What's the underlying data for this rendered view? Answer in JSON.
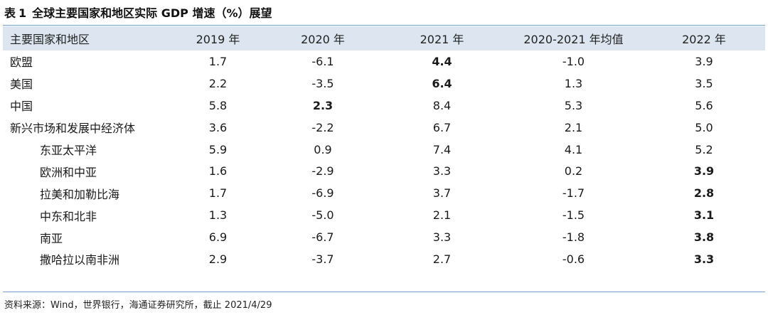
{
  "title": {
    "prefix": "表",
    "number": "1",
    "text": "全球主要国家和地区实际 GDP 增速（%）展望"
  },
  "table": {
    "headers": [
      "主要国家和地区",
      "2019 年",
      "2020 年",
      "2021 年",
      "2020-2021 年均值",
      "2022 年"
    ],
    "rows": [
      {
        "region": "欧盟",
        "indent": false,
        "values": [
          "1.7",
          "-6.1",
          "4.4",
          "-1.0",
          "3.9"
        ],
        "bold": [
          false,
          false,
          true,
          false,
          false
        ]
      },
      {
        "region": "美国",
        "indent": false,
        "values": [
          "2.2",
          "-3.5",
          "6.4",
          "1.3",
          "3.5"
        ],
        "bold": [
          false,
          false,
          true,
          false,
          false
        ]
      },
      {
        "region": "中国",
        "indent": false,
        "values": [
          "5.8",
          "2.3",
          "8.4",
          "5.3",
          "5.6"
        ],
        "bold": [
          false,
          true,
          false,
          false,
          false
        ]
      },
      {
        "region": "新兴市场和发展中经济体",
        "indent": false,
        "values": [
          "3.6",
          "-2.2",
          "6.7",
          "2.1",
          "5.0"
        ],
        "bold": [
          false,
          false,
          false,
          false,
          false
        ]
      },
      {
        "region": "东亚太平洋",
        "indent": true,
        "values": [
          "5.9",
          "0.9",
          "7.4",
          "4.1",
          "5.2"
        ],
        "bold": [
          false,
          false,
          false,
          false,
          false
        ]
      },
      {
        "region": "欧洲和中亚",
        "indent": true,
        "values": [
          "1.6",
          "-2.9",
          "3.3",
          "0.2",
          "3.9"
        ],
        "bold": [
          false,
          false,
          false,
          false,
          true
        ]
      },
      {
        "region": "拉美和加勒比海",
        "indent": true,
        "values": [
          "1.7",
          "-6.9",
          "3.7",
          "-1.7",
          "2.8"
        ],
        "bold": [
          false,
          false,
          false,
          false,
          true
        ]
      },
      {
        "region": "中东和北非",
        "indent": true,
        "values": [
          "1.3",
          "-5.0",
          "2.1",
          "-1.5",
          "3.1"
        ],
        "bold": [
          false,
          false,
          false,
          false,
          true
        ]
      },
      {
        "region": "南亚",
        "indent": true,
        "values": [
          "6.9",
          "-6.7",
          "3.3",
          "-1.8",
          "3.8"
        ],
        "bold": [
          false,
          false,
          false,
          false,
          true
        ]
      },
      {
        "region": "撒哈拉以南非洲",
        "indent": true,
        "values": [
          "2.9",
          "-3.7",
          "2.7",
          "-0.6",
          "3.3"
        ],
        "bold": [
          false,
          false,
          false,
          false,
          true
        ]
      }
    ]
  },
  "source": "资料来源：Wind，世界银行，海通证券研究所，截止 2021/4/29",
  "colors": {
    "header_bg": "#dce5f0",
    "rule": "#7ba0c8"
  }
}
